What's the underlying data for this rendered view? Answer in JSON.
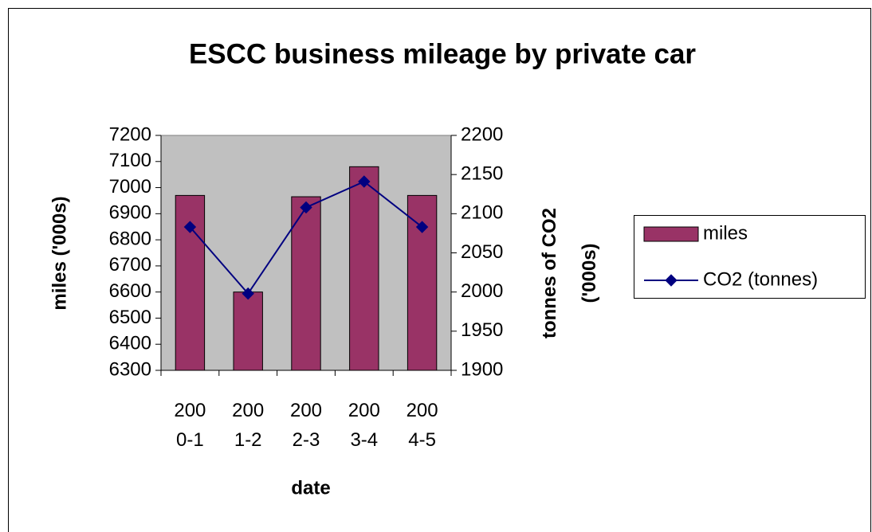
{
  "chart_data": {
    "type": "bar-line",
    "title": "ESCC business mileage by private car",
    "x_label": "date",
    "y_label": "miles ('000s)",
    "y2_label": "tonnes of CO2 ('000s)",
    "categories": [
      "2000-1",
      "2001-2",
      "2002-3",
      "2003-4",
      "2004-5"
    ],
    "series": [
      {
        "name": "miles",
        "type": "bar",
        "color": "#993366",
        "values": [
          6970,
          6600,
          6965,
          7080,
          6970
        ]
      },
      {
        "name": "CO2 (tonnes)",
        "type": "line",
        "axis": "y2",
        "color": "#000080",
        "values": [
          2083,
          1998,
          2108,
          2141,
          2083
        ]
      }
    ],
    "ylim": [
      6300,
      7200
    ],
    "yticks": [
      6300,
      6400,
      6500,
      6600,
      6700,
      6800,
      6900,
      7000,
      7100,
      7200
    ],
    "y2lim": [
      1900,
      2200
    ],
    "y2ticks": [
      1900,
      1950,
      2000,
      2050,
      2100,
      2150,
      2200
    ],
    "plot_background": "#c0c0c0",
    "legend": "right"
  }
}
